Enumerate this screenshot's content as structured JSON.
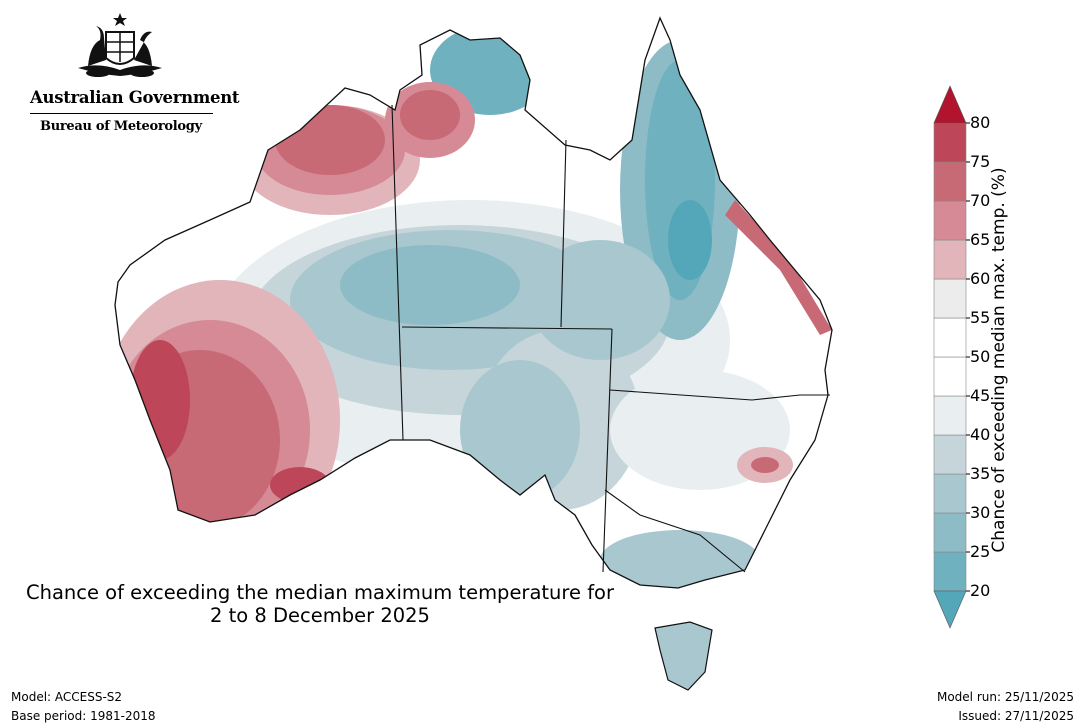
{
  "header": {
    "government": "Australian Government",
    "bureau": "Bureau of Meteorology"
  },
  "map": {
    "title_line1": "Chance of exceeding the median maximum temperature for",
    "title_line2": "2 to 8 December 2025"
  },
  "legend": {
    "label": "Chance of exceeding median max. temp. (%)",
    "ticks": [
      "20",
      "25",
      "30",
      "35",
      "40",
      "45",
      "50",
      "55",
      "60",
      "65",
      "70",
      "75",
      "80"
    ],
    "colors": [
      "#6fb1bf",
      "#8dbcc7",
      "#a8c7cf",
      "#c6d5da",
      "#e9eff1",
      "#ffffff",
      "#ffffff",
      "#ececec",
      "#e1b5ba",
      "#d58a95",
      "#c86976",
      "#bd4758"
    ],
    "low_arrow_color": "#54a7b9",
    "high_arrow_color": "#b3142d"
  },
  "footer": {
    "model": "Model: ACCESS-S2",
    "base_period": "Base period: 1981-2018",
    "model_run": "Model run: 25/11/2025",
    "issued": "Issued: 27/11/2025"
  }
}
